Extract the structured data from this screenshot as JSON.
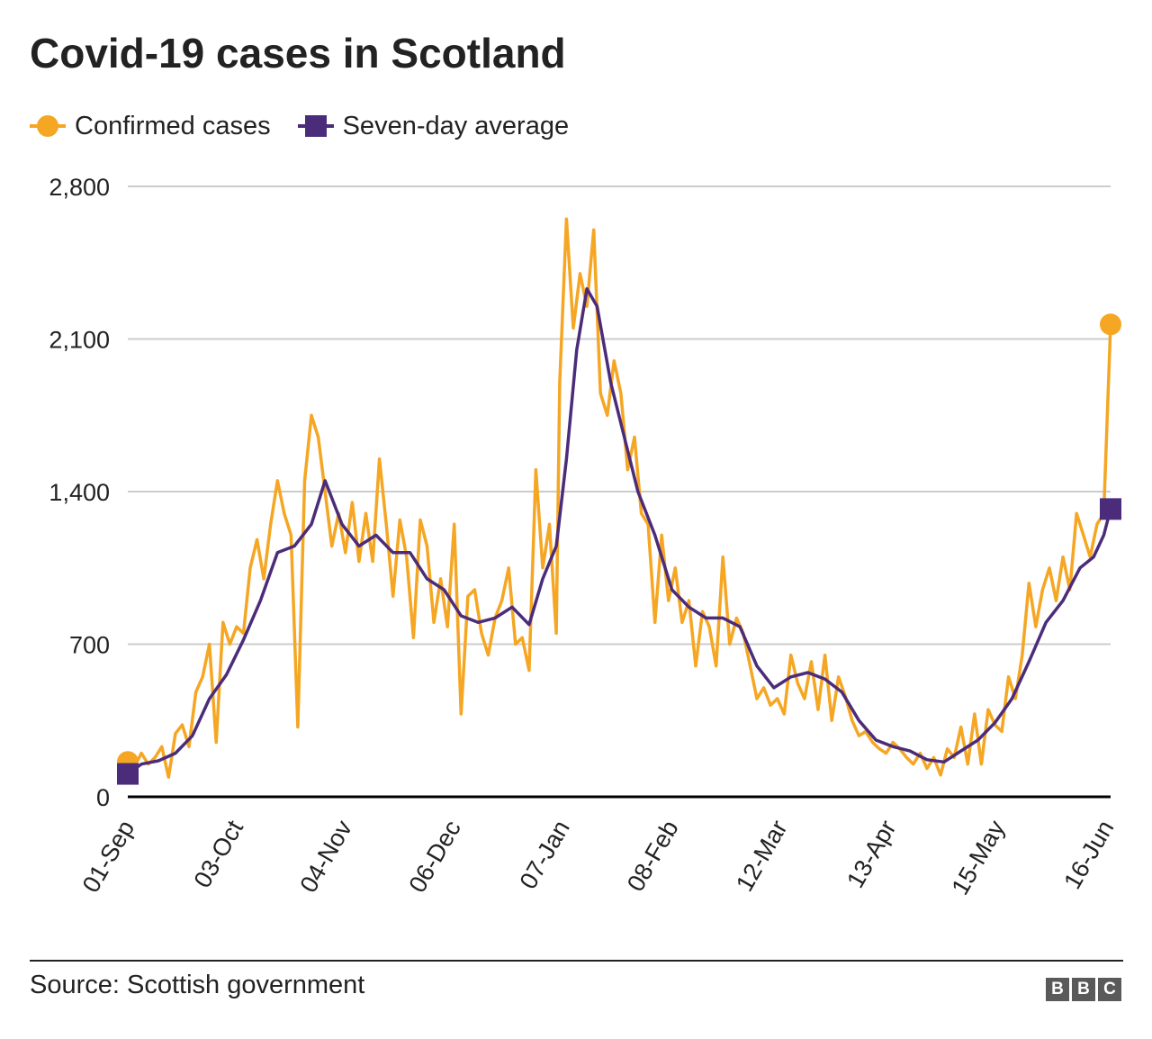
{
  "chart_data": {
    "type": "line",
    "title": "Covid-19 cases in Scotland",
    "xlabel": "",
    "ylabel": "",
    "ylim": [
      0,
      2800
    ],
    "yticks": [
      0,
      700,
      1400,
      2100,
      2800
    ],
    "ytick_labels": [
      "0",
      "700",
      "1,400",
      "2,100",
      "2,800"
    ],
    "xticks": [
      "2020-09-01",
      "2020-10-03",
      "2020-11-04",
      "2020-12-06",
      "2021-01-07",
      "2021-02-08",
      "2021-03-12",
      "2021-04-13",
      "2021-05-15",
      "2021-06-16"
    ],
    "xtick_labels": [
      "01-Sep",
      "03-Oct",
      "04-Nov",
      "06-Dec",
      "07-Jan",
      "08-Feb",
      "12-Mar",
      "13-Apr",
      "15-May",
      "16-Jun"
    ],
    "xlim": [
      "2020-09-01",
      "2021-06-17"
    ],
    "grid": "horizontal",
    "legend_placement": "top-left",
    "source": "Source: Scottish government",
    "colors": {
      "confirmed": "#f5a623",
      "average": "#4b2c7a",
      "grid": "#cccccc",
      "baseline": "#000000"
    },
    "series": [
      {
        "name": "Confirmed cases",
        "marker": "circle-at-ends",
        "points": [
          [
            "2020-09-01",
            160
          ],
          [
            "2020-09-03",
            140
          ],
          [
            "2020-09-05",
            200
          ],
          [
            "2020-09-07",
            150
          ],
          [
            "2020-09-09",
            180
          ],
          [
            "2020-09-11",
            230
          ],
          [
            "2020-09-13",
            90
          ],
          [
            "2020-09-15",
            290
          ],
          [
            "2020-09-17",
            330
          ],
          [
            "2020-09-19",
            230
          ],
          [
            "2020-09-21",
            480
          ],
          [
            "2020-09-23",
            550
          ],
          [
            "2020-09-25",
            700
          ],
          [
            "2020-09-27",
            250
          ],
          [
            "2020-09-29",
            800
          ],
          [
            "2020-10-01",
            700
          ],
          [
            "2020-10-03",
            780
          ],
          [
            "2020-10-05",
            750
          ],
          [
            "2020-10-07",
            1050
          ],
          [
            "2020-10-09",
            1180
          ],
          [
            "2020-10-11",
            1000
          ],
          [
            "2020-10-13",
            1250
          ],
          [
            "2020-10-15",
            1450
          ],
          [
            "2020-10-17",
            1300
          ],
          [
            "2020-10-19",
            1200
          ],
          [
            "2020-10-21",
            320
          ],
          [
            "2020-10-23",
            1450
          ],
          [
            "2020-10-25",
            1750
          ],
          [
            "2020-10-27",
            1650
          ],
          [
            "2020-10-29",
            1400
          ],
          [
            "2020-10-31",
            1150
          ],
          [
            "2020-11-02",
            1300
          ],
          [
            "2020-11-04",
            1120
          ],
          [
            "2020-11-06",
            1350
          ],
          [
            "2020-11-08",
            1080
          ],
          [
            "2020-11-10",
            1300
          ],
          [
            "2020-11-12",
            1080
          ],
          [
            "2020-11-14",
            1550
          ],
          [
            "2020-11-16",
            1250
          ],
          [
            "2020-11-18",
            920
          ],
          [
            "2020-11-20",
            1270
          ],
          [
            "2020-11-22",
            1100
          ],
          [
            "2020-11-24",
            730
          ],
          [
            "2020-11-26",
            1270
          ],
          [
            "2020-11-28",
            1150
          ],
          [
            "2020-11-30",
            800
          ],
          [
            "2020-12-02",
            1000
          ],
          [
            "2020-12-04",
            780
          ],
          [
            "2020-12-06",
            1250
          ],
          [
            "2020-12-08",
            380
          ],
          [
            "2020-12-10",
            920
          ],
          [
            "2020-12-12",
            950
          ],
          [
            "2020-12-14",
            750
          ],
          [
            "2020-12-16",
            650
          ],
          [
            "2020-12-18",
            820
          ],
          [
            "2020-12-20",
            900
          ],
          [
            "2020-12-22",
            1050
          ],
          [
            "2020-12-24",
            700
          ],
          [
            "2020-12-26",
            730
          ],
          [
            "2020-12-28",
            580
          ],
          [
            "2020-12-30",
            1500
          ],
          [
            "2021-01-01",
            1050
          ],
          [
            "2021-01-03",
            1250
          ],
          [
            "2021-01-05",
            750
          ],
          [
            "2021-01-06",
            1900
          ],
          [
            "2021-01-08",
            2650
          ],
          [
            "2021-01-10",
            2150
          ],
          [
            "2021-01-12",
            2400
          ],
          [
            "2021-01-14",
            2250
          ],
          [
            "2021-01-16",
            2600
          ],
          [
            "2021-01-18",
            1850
          ],
          [
            "2021-01-20",
            1750
          ],
          [
            "2021-01-22",
            2000
          ],
          [
            "2021-01-24",
            1850
          ],
          [
            "2021-01-26",
            1500
          ],
          [
            "2021-01-28",
            1650
          ],
          [
            "2021-01-30",
            1300
          ],
          [
            "2021-02-01",
            1250
          ],
          [
            "2021-02-03",
            800
          ],
          [
            "2021-02-05",
            1200
          ],
          [
            "2021-02-07",
            900
          ],
          [
            "2021-02-09",
            1050
          ],
          [
            "2021-02-11",
            800
          ],
          [
            "2021-02-13",
            900
          ],
          [
            "2021-02-15",
            600
          ],
          [
            "2021-02-17",
            850
          ],
          [
            "2021-02-19",
            780
          ],
          [
            "2021-02-21",
            600
          ],
          [
            "2021-02-23",
            1100
          ],
          [
            "2021-02-25",
            700
          ],
          [
            "2021-02-27",
            820
          ],
          [
            "2021-03-01",
            750
          ],
          [
            "2021-03-03",
            600
          ],
          [
            "2021-03-05",
            450
          ],
          [
            "2021-03-07",
            500
          ],
          [
            "2021-03-09",
            420
          ],
          [
            "2021-03-11",
            450
          ],
          [
            "2021-03-13",
            380
          ],
          [
            "2021-03-15",
            650
          ],
          [
            "2021-03-17",
            520
          ],
          [
            "2021-03-19",
            450
          ],
          [
            "2021-03-21",
            620
          ],
          [
            "2021-03-23",
            400
          ],
          [
            "2021-03-25",
            650
          ],
          [
            "2021-03-27",
            350
          ],
          [
            "2021-03-29",
            550
          ],
          [
            "2021-03-31",
            460
          ],
          [
            "2021-04-02",
            350
          ],
          [
            "2021-04-04",
            280
          ],
          [
            "2021-04-06",
            300
          ],
          [
            "2021-04-08",
            250
          ],
          [
            "2021-04-10",
            220
          ],
          [
            "2021-04-12",
            200
          ],
          [
            "2021-04-14",
            250
          ],
          [
            "2021-04-16",
            220
          ],
          [
            "2021-04-18",
            180
          ],
          [
            "2021-04-20",
            150
          ],
          [
            "2021-04-22",
            200
          ],
          [
            "2021-04-24",
            130
          ],
          [
            "2021-04-26",
            180
          ],
          [
            "2021-04-28",
            100
          ],
          [
            "2021-04-30",
            220
          ],
          [
            "2021-05-02",
            180
          ],
          [
            "2021-05-04",
            320
          ],
          [
            "2021-05-06",
            150
          ],
          [
            "2021-05-08",
            380
          ],
          [
            "2021-05-10",
            150
          ],
          [
            "2021-05-12",
            400
          ],
          [
            "2021-05-14",
            330
          ],
          [
            "2021-05-16",
            300
          ],
          [
            "2021-05-18",
            550
          ],
          [
            "2021-05-20",
            450
          ],
          [
            "2021-05-22",
            650
          ],
          [
            "2021-05-24",
            980
          ],
          [
            "2021-05-26",
            780
          ],
          [
            "2021-05-28",
            950
          ],
          [
            "2021-05-30",
            1050
          ],
          [
            "2021-06-01",
            900
          ],
          [
            "2021-06-03",
            1100
          ],
          [
            "2021-06-05",
            950
          ],
          [
            "2021-06-07",
            1300
          ],
          [
            "2021-06-09",
            1200
          ],
          [
            "2021-06-11",
            1100
          ],
          [
            "2021-06-13",
            1250
          ],
          [
            "2021-06-15",
            1300
          ],
          [
            "2021-06-17",
            2167
          ]
        ]
      },
      {
        "name": "Seven-day average",
        "marker": "square-at-ends",
        "points": [
          [
            "2020-09-01",
            105
          ],
          [
            "2020-09-05",
            150
          ],
          [
            "2020-09-10",
            165
          ],
          [
            "2020-09-15",
            200
          ],
          [
            "2020-09-20",
            280
          ],
          [
            "2020-09-25",
            450
          ],
          [
            "2020-09-30",
            560
          ],
          [
            "2020-10-05",
            720
          ],
          [
            "2020-10-10",
            900
          ],
          [
            "2020-10-15",
            1120
          ],
          [
            "2020-10-20",
            1150
          ],
          [
            "2020-10-25",
            1250
          ],
          [
            "2020-10-29",
            1450
          ],
          [
            "2020-11-03",
            1250
          ],
          [
            "2020-11-08",
            1150
          ],
          [
            "2020-11-13",
            1200
          ],
          [
            "2020-11-18",
            1120
          ],
          [
            "2020-11-23",
            1120
          ],
          [
            "2020-11-28",
            1000
          ],
          [
            "2020-12-03",
            950
          ],
          [
            "2020-12-08",
            830
          ],
          [
            "2020-12-13",
            800
          ],
          [
            "2020-12-18",
            820
          ],
          [
            "2020-12-23",
            870
          ],
          [
            "2020-12-28",
            790
          ],
          [
            "2021-01-01",
            1000
          ],
          [
            "2021-01-05",
            1150
          ],
          [
            "2021-01-08",
            1550
          ],
          [
            "2021-01-11",
            2050
          ],
          [
            "2021-01-14",
            2330
          ],
          [
            "2021-01-17",
            2250
          ],
          [
            "2021-01-21",
            1900
          ],
          [
            "2021-01-25",
            1650
          ],
          [
            "2021-01-29",
            1400
          ],
          [
            "2021-02-03",
            1200
          ],
          [
            "2021-02-08",
            950
          ],
          [
            "2021-02-13",
            870
          ],
          [
            "2021-02-18",
            820
          ],
          [
            "2021-02-23",
            820
          ],
          [
            "2021-02-28",
            780
          ],
          [
            "2021-03-05",
            600
          ],
          [
            "2021-03-10",
            500
          ],
          [
            "2021-03-15",
            550
          ],
          [
            "2021-03-20",
            570
          ],
          [
            "2021-03-25",
            540
          ],
          [
            "2021-03-30",
            480
          ],
          [
            "2021-04-04",
            350
          ],
          [
            "2021-04-09",
            260
          ],
          [
            "2021-04-14",
            230
          ],
          [
            "2021-04-19",
            210
          ],
          [
            "2021-04-24",
            170
          ],
          [
            "2021-04-29",
            160
          ],
          [
            "2021-05-04",
            210
          ],
          [
            "2021-05-09",
            260
          ],
          [
            "2021-05-14",
            340
          ],
          [
            "2021-05-19",
            450
          ],
          [
            "2021-05-24",
            620
          ],
          [
            "2021-05-29",
            800
          ],
          [
            "2021-06-03",
            900
          ],
          [
            "2021-06-08",
            1050
          ],
          [
            "2021-06-12",
            1100
          ],
          [
            "2021-06-15",
            1200
          ],
          [
            "2021-06-17",
            1320
          ]
        ]
      }
    ]
  }
}
